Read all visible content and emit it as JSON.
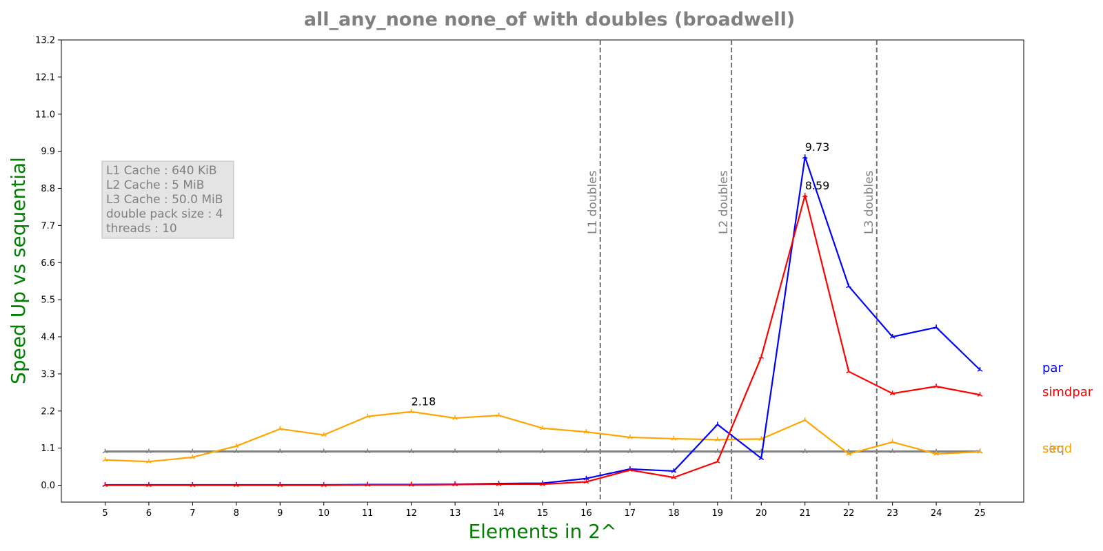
{
  "chart_data": {
    "type": "line",
    "title": "all_any_none none_of with doubles  (broadwell)",
    "xlabel": "Elements in 2^",
    "ylabel": "Speed Up vs sequential",
    "x": [
      5,
      6,
      7,
      8,
      9,
      10,
      11,
      12,
      13,
      14,
      15,
      16,
      17,
      18,
      19,
      20,
      21,
      22,
      23,
      24,
      25
    ],
    "x_ticks": [
      "5",
      "6",
      "7",
      "8",
      "9",
      "10",
      "11",
      "12",
      "13",
      "14",
      "15",
      "16",
      "17",
      "18",
      "19",
      "20",
      "21",
      "22",
      "23",
      "24",
      "25"
    ],
    "xlim": [
      4.0,
      26.0
    ],
    "ylim": [
      -0.5,
      13.2
    ],
    "y_ticks": [
      "0.0",
      "1.1",
      "2.2",
      "3.3",
      "4.4",
      "5.5",
      "6.6",
      "7.7",
      "8.8",
      "9.9",
      "11.0",
      "12.1",
      "13.2"
    ],
    "series": [
      {
        "name": "seq",
        "color": "#808080",
        "values": [
          1,
          1,
          1,
          1,
          1,
          1,
          1,
          1,
          1,
          1,
          1,
          1,
          1,
          1,
          1,
          1,
          1,
          1,
          1,
          1,
          1
        ]
      },
      {
        "name": "par",
        "color": "#0000ff",
        "values": [
          0.01,
          0.01,
          0.01,
          0.01,
          0.01,
          0.01,
          0.02,
          0.02,
          0.03,
          0.05,
          0.06,
          0.2,
          0.48,
          0.42,
          1.8,
          0.8,
          9.73,
          5.9,
          4.4,
          4.68,
          3.42
        ]
      },
      {
        "name": "simdpar",
        "color": "#ff0000",
        "values": [
          0.0,
          0.0,
          0.0,
          0.0,
          0.0,
          0.0,
          0.01,
          0.01,
          0.02,
          0.03,
          0.03,
          0.1,
          0.45,
          0.23,
          0.7,
          3.8,
          8.59,
          3.37,
          2.72,
          2.93,
          2.68
        ]
      },
      {
        "name": "simd",
        "color": "#ffa500",
        "values": [
          0.75,
          0.7,
          0.83,
          1.16,
          1.67,
          1.49,
          2.04,
          2.18,
          1.99,
          2.07,
          1.69,
          1.58,
          1.42,
          1.38,
          1.35,
          1.37,
          1.93,
          0.93,
          1.28,
          0.93,
          0.99
        ]
      }
    ],
    "vlines": [
      {
        "x": 16.32,
        "label": "L1 doubles"
      },
      {
        "x": 19.32,
        "label": "L2 doubles"
      },
      {
        "x": 22.64,
        "label": "L3 doubles"
      }
    ],
    "annotations": [
      {
        "text": "2.18",
        "x": 12,
        "y": 2.18
      },
      {
        "text": "9.73",
        "x": 21,
        "y": 9.73
      },
      {
        "text": "8.59",
        "x": 21,
        "y": 8.59
      }
    ],
    "info_box": [
      "L1 Cache : 640 KiB",
      "L2 Cache : 5 MiB",
      "L3 Cache : 50.0 MiB",
      "double pack size : 4",
      "threads : 10"
    ],
    "legend": [
      {
        "name": "par",
        "color": "#0000ff"
      },
      {
        "name": "simdpar",
        "color": "#ff0000"
      },
      {
        "name": "seq",
        "color": "#808080"
      },
      {
        "name": "simd",
        "color": "#ffa500"
      }
    ],
    "grid": false,
    "legend_placement": "right-outside"
  }
}
